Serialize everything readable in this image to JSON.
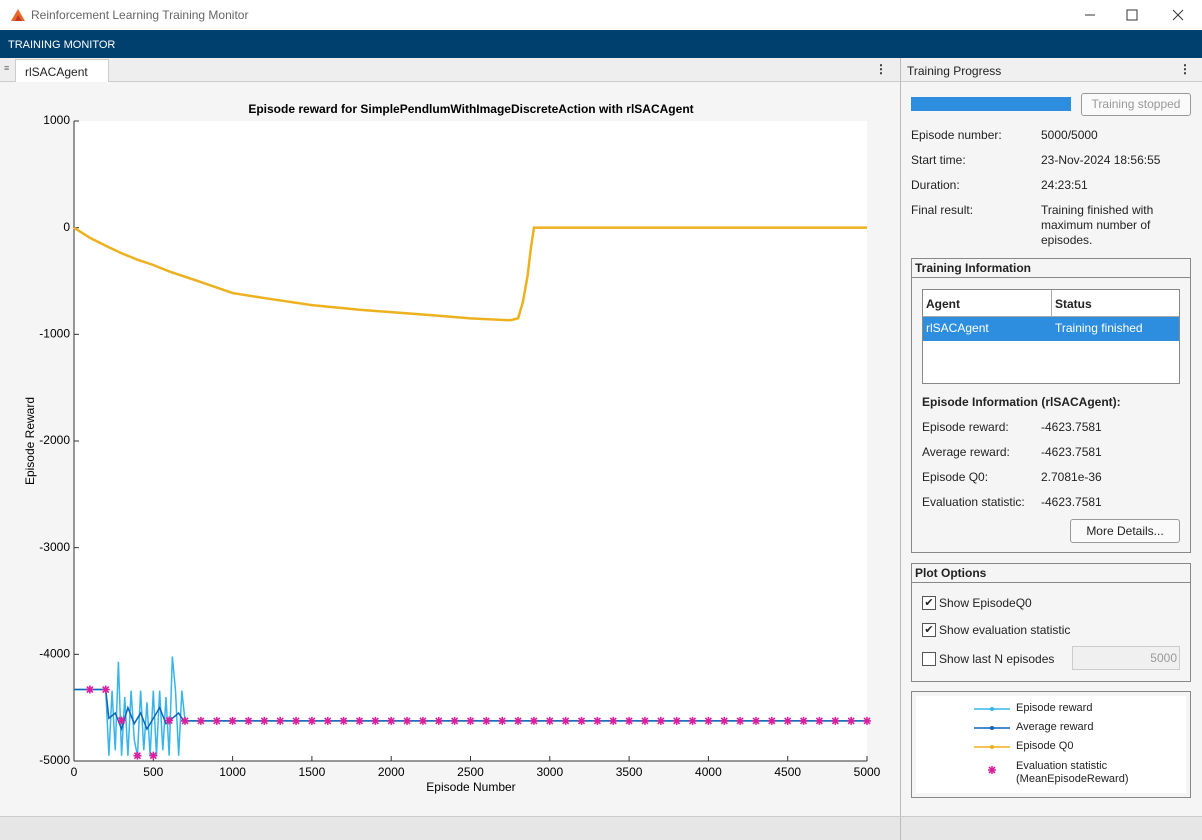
{
  "window": {
    "title": "Reinforcement Learning Training Monitor"
  },
  "banner": "TRAINING MONITOR",
  "tab": "rlSACAgent",
  "chart_data": {
    "type": "line",
    "title": "Episode reward for SimplePendlumWithImageDiscreteAction with rlSACAgent",
    "x_label": "Episode Number",
    "y_label": "Episode Reward",
    "xlim": [
      0,
      5000
    ],
    "ylim": [
      -5000,
      1000
    ],
    "xticks": [
      0,
      500,
      1000,
      1500,
      2000,
      2500,
      3000,
      3500,
      4000,
      4500,
      5000
    ],
    "yticks": [
      -5000,
      -4000,
      -3000,
      -2000,
      -1000,
      0,
      1000
    ],
    "grid": false,
    "series": [
      {
        "name": "Episode reward",
        "color": "#37b5ea",
        "marker": "dot",
        "x": [
          0,
          100,
          200,
          220,
          240,
          260,
          280,
          300,
          320,
          340,
          360,
          380,
          400,
          420,
          440,
          460,
          480,
          500,
          520,
          540,
          560,
          580,
          600,
          620,
          640,
          660,
          680,
          700,
          5000
        ],
        "values": [
          -4330,
          -4330,
          -4330,
          -4950,
          -4340,
          -4900,
          -4070,
          -4950,
          -4400,
          -4950,
          -4340,
          -4800,
          -4950,
          -4340,
          -4900,
          -4450,
          -4950,
          -4340,
          -4950,
          -4340,
          -4900,
          -4400,
          -4950,
          -4020,
          -4340,
          -4950,
          -4340,
          -4624,
          -4624
        ]
      },
      {
        "name": "Average reward",
        "color": "#0a66b8",
        "marker": "dot",
        "x": [
          0,
          200,
          220,
          260,
          300,
          340,
          380,
          420,
          460,
          500,
          540,
          580,
          620,
          660,
          690,
          5000
        ],
        "values": [
          -4330,
          -4330,
          -4600,
          -4550,
          -4700,
          -4500,
          -4650,
          -4550,
          -4700,
          -4600,
          -4500,
          -4650,
          -4600,
          -4550,
          -4624,
          -4624
        ]
      },
      {
        "name": "Episode Q0",
        "color": "#edb120",
        "marker": "dot",
        "x": [
          0,
          100,
          200,
          300,
          400,
          500,
          600,
          800,
          1000,
          1200,
          1500,
          1800,
          2000,
          2250,
          2500,
          2750,
          2800,
          2830,
          2860,
          2880,
          2900,
          5000
        ],
        "values": [
          0,
          -95,
          -170,
          -240,
          -300,
          -350,
          -410,
          -510,
          -613,
          -660,
          -726,
          -770,
          -792,
          -820,
          -850,
          -868,
          -850,
          -700,
          -450,
          -200,
          0,
          0
        ]
      },
      {
        "name": "Evaluation statistic (MeanEpisodeReward)",
        "color": "#d9209e",
        "marker": "asterisk",
        "x": [
          100,
          200,
          300,
          400,
          500,
          600,
          700,
          800,
          900,
          1000,
          1100,
          1200,
          1300,
          1400,
          1500,
          1600,
          1700,
          1800,
          1900,
          2000,
          2100,
          2200,
          2300,
          2400,
          2500,
          2600,
          2700,
          2800,
          2900,
          3000,
          3100,
          3200,
          3300,
          3400,
          3500,
          3600,
          3700,
          3800,
          3900,
          4000,
          4100,
          4200,
          4300,
          4400,
          4500,
          4600,
          4700,
          4800,
          4900,
          5000
        ],
        "values": [
          -4330,
          -4330,
          -4620,
          -4950,
          -4950,
          -4620,
          -4624,
          -4624,
          -4624,
          -4624,
          -4624,
          -4624,
          -4624,
          -4624,
          -4624,
          -4624,
          -4624,
          -4624,
          -4624,
          -4624,
          -4624,
          -4624,
          -4624,
          -4624,
          -4624,
          -4624,
          -4624,
          -4624,
          -4624,
          -4624,
          -4624,
          -4624,
          -4624,
          -4624,
          -4624,
          -4624,
          -4624,
          -4624,
          -4624,
          -4624,
          -4624,
          -4624,
          -4624,
          -4624,
          -4624,
          -4624,
          -4624,
          -4624,
          -4624,
          -4624
        ]
      }
    ]
  },
  "progress": {
    "title": "Training Progress",
    "button": "Training stopped",
    "fields": [
      {
        "label": "Episode number:",
        "value": "5000/5000"
      },
      {
        "label": "Start time:",
        "value": "23-Nov-2024 18:56:55"
      },
      {
        "label": "Duration:",
        "value": "24:23:51"
      },
      {
        "label": "Final result:",
        "value": "Training finished with maximum number of episodes."
      }
    ]
  },
  "training_information": {
    "title": "Training Information",
    "columns": [
      "Agent",
      "Status"
    ],
    "rows": [
      [
        "rlSACAgent",
        "Training finished"
      ]
    ]
  },
  "episode_information": {
    "title": "Episode Information (rlSACAgent):",
    "fields": [
      {
        "label": "Episode reward:",
        "value": "-4623.7581"
      },
      {
        "label": "Average reward:",
        "value": "-4623.7581"
      },
      {
        "label": "Episode Q0:",
        "value": "2.7081e-36"
      },
      {
        "label": "Evaluation statistic:",
        "value": "-4623.7581"
      }
    ],
    "button": "More Details..."
  },
  "plot_options": {
    "title": "Plot Options",
    "options": [
      {
        "label": "Show EpisodeQ0",
        "checked": true
      },
      {
        "label": "Show evaluation statistic",
        "checked": true
      },
      {
        "label": "Show last N episodes",
        "checked": false
      }
    ],
    "last_n": "5000"
  }
}
